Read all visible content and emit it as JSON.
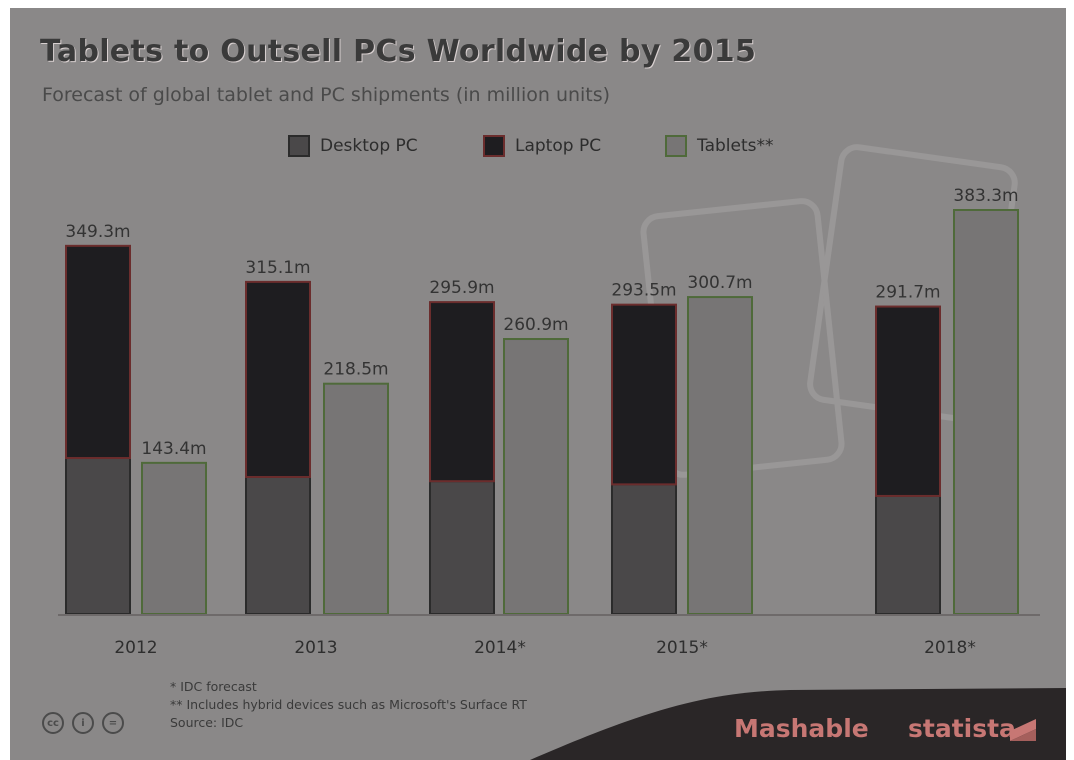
{
  "title": "Tablets to Outsell PCs Worldwide by 2015",
  "subtitle": "Forecast of global tablet and PC shipments (in million units)",
  "legend": [
    {
      "label": "Desktop PC",
      "color": "#4a4849",
      "border": "#2b2b2b"
    },
    {
      "label": "Laptop PC",
      "color": "#1e1d20",
      "border": "#6b2d2d"
    },
    {
      "label": "Tablets**",
      "color": "#777575",
      "border": "#4f6a3a"
    }
  ],
  "chart_data": {
    "type": "bar",
    "title": "Tablets to Outsell PCs Worldwide by 2015",
    "subtitle": "Forecast of global tablet and PC shipments (in million units)",
    "categories": [
      "2012",
      "2013",
      "2014*",
      "2015*",
      "2018*"
    ],
    "stacked_group": "PC",
    "series": [
      {
        "name": "Desktop PC",
        "group": "PC",
        "values": [
          148,
          130,
          126,
          123,
          112
        ]
      },
      {
        "name": "Laptop PC",
        "group": "PC",
        "values": [
          201.3,
          185.1,
          169.9,
          170.5,
          179.7
        ]
      },
      {
        "name": "Tablets**",
        "group": "Tablets",
        "values": [
          143.4,
          218.5,
          260.9,
          300.7,
          383.3
        ]
      }
    ],
    "pc_total_labels": [
      "349.3m",
      "315.1m",
      "295.9m",
      "293.5m",
      "291.7m"
    ],
    "tablet_labels": [
      "143.4m",
      "218.5m",
      "260.9m",
      "300.7m",
      "383.3m"
    ],
    "ylim": [
      0,
      400
    ],
    "grid": false,
    "legend_position": "top-center"
  },
  "footnotes": [
    "* IDC forecast",
    "** Includes hybrid devices such as Microsoft's Surface RT",
    "Source: IDC"
  ],
  "brands": {
    "mashable": "Mashable",
    "statista": "statista"
  },
  "colors": {
    "background": "#8a8888",
    "band": "#2a2627",
    "brand_text": "#c77774"
  }
}
